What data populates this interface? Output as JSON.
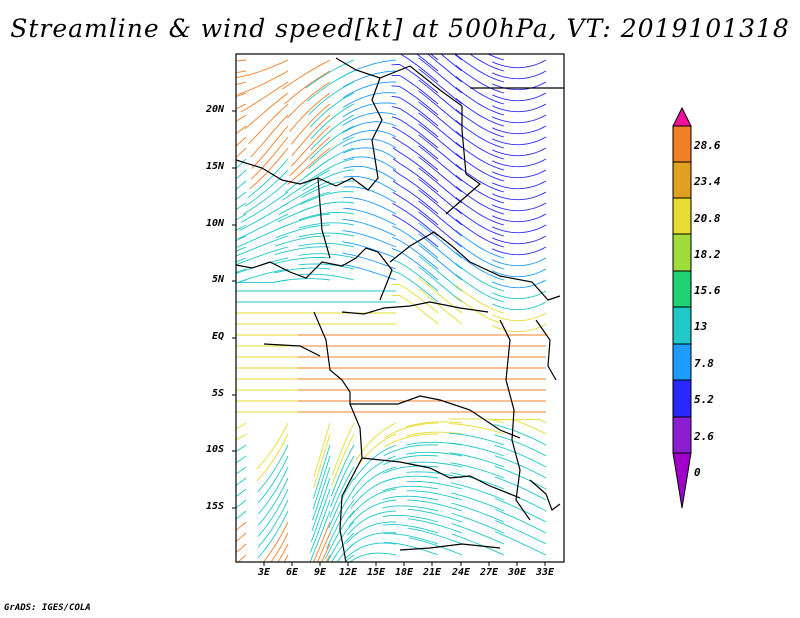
{
  "title": "Streamline & wind speed[kt] at 500hPa, VT: 2019101318",
  "footer": "GrADS: IGES/COLA",
  "lat_labels": [
    "20N",
    "15N",
    "10N",
    "5N",
    "EQ",
    "5S",
    "10S",
    "15S"
  ],
  "lon_labels": [
    "3E",
    "6E",
    "9E",
    "12E",
    "15E",
    "18E",
    "21E",
    "24E",
    "27E",
    "30E",
    "33E"
  ],
  "colorbar": {
    "labels": [
      "28.6",
      "23.4",
      "20.8",
      "18.2",
      "15.6",
      "13",
      "7.8",
      "5.2",
      "2.6",
      "0"
    ],
    "colors": [
      "#f0109c",
      "#f08028",
      "#e0a020",
      "#e6dc32",
      "#a0dc3c",
      "#20d272",
      "#20c8c8",
      "#1e9bff",
      "#2828ff",
      "#8c1ed2",
      "#a000c8"
    ]
  }
}
